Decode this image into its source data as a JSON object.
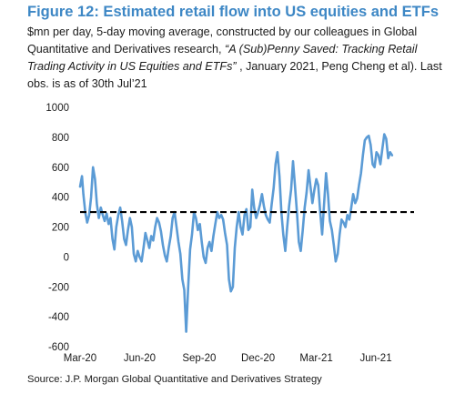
{
  "title": "Figure 12: Estimated retail flow into US equities and ETFs",
  "subtitle": {
    "part1": "$mn per day, 5-day moving average, constructed by our colleagues in Global Quantitative and Derivatives research, ",
    "italic": "“A (Sub)Penny Saved: Tracking Retail Trading Activity in US Equities and ETFs”",
    "part2": " , January 2021, Peng Cheng et al). Last obs. is as of 30th Jul’21"
  },
  "source": "Source: J.P. Morgan Global Quantitative and Derivatives Strategy",
  "colors": {
    "title": "#3d87c5",
    "series": "#5b9bd5",
    "reference": "#000000"
  },
  "chart_data": {
    "type": "line",
    "ylim": [
      -600,
      1000
    ],
    "y_ticks": [
      -600,
      -400,
      -200,
      0,
      200,
      400,
      600,
      800,
      1000
    ],
    "x_range": [
      "2020-03-01",
      "2021-07-30"
    ],
    "x_ticks": [
      {
        "date": "2020-03-01",
        "label": "Mar-20"
      },
      {
        "date": "2020-06-01",
        "label": "Jun-20"
      },
      {
        "date": "2020-09-01",
        "label": "Sep-20"
      },
      {
        "date": "2020-12-01",
        "label": "Dec-20"
      },
      {
        "date": "2021-03-01",
        "label": "Mar-21"
      },
      {
        "date": "2021-06-01",
        "label": "Jun-21"
      }
    ],
    "reference_line": {
      "value": 300,
      "style": "dashed"
    },
    "grid": false,
    "series": [
      {
        "points": [
          [
            "2020-03-01",
            470
          ],
          [
            "2020-03-04",
            540
          ],
          [
            "2020-03-06",
            420
          ],
          [
            "2020-03-09",
            300
          ],
          [
            "2020-03-12",
            230
          ],
          [
            "2020-03-15",
            280
          ],
          [
            "2020-03-18",
            400
          ],
          [
            "2020-03-21",
            600
          ],
          [
            "2020-03-24",
            520
          ],
          [
            "2020-03-27",
            350
          ],
          [
            "2020-03-30",
            260
          ],
          [
            "2020-04-02",
            330
          ],
          [
            "2020-04-05",
            280
          ],
          [
            "2020-04-08",
            240
          ],
          [
            "2020-04-11",
            290
          ],
          [
            "2020-04-14",
            220
          ],
          [
            "2020-04-17",
            260
          ],
          [
            "2020-04-20",
            120
          ],
          [
            "2020-04-23",
            50
          ],
          [
            "2020-04-26",
            200
          ],
          [
            "2020-04-29",
            280
          ],
          [
            "2020-05-02",
            330
          ],
          [
            "2020-05-05",
            240
          ],
          [
            "2020-05-08",
            120
          ],
          [
            "2020-05-11",
            80
          ],
          [
            "2020-05-14",
            180
          ],
          [
            "2020-05-17",
            260
          ],
          [
            "2020-05-20",
            200
          ],
          [
            "2020-05-23",
            20
          ],
          [
            "2020-05-26",
            -30
          ],
          [
            "2020-05-29",
            40
          ],
          [
            "2020-06-01",
            0
          ],
          [
            "2020-06-04",
            -30
          ],
          [
            "2020-06-07",
            60
          ],
          [
            "2020-06-10",
            160
          ],
          [
            "2020-06-13",
            110
          ],
          [
            "2020-06-16",
            60
          ],
          [
            "2020-06-19",
            140
          ],
          [
            "2020-06-22",
            110
          ],
          [
            "2020-06-25",
            200
          ],
          [
            "2020-06-28",
            260
          ],
          [
            "2020-07-01",
            230
          ],
          [
            "2020-07-04",
            170
          ],
          [
            "2020-07-07",
            80
          ],
          [
            "2020-07-10",
            10
          ],
          [
            "2020-07-13",
            -30
          ],
          [
            "2020-07-16",
            60
          ],
          [
            "2020-07-19",
            140
          ],
          [
            "2020-07-22",
            260
          ],
          [
            "2020-07-25",
            300
          ],
          [
            "2020-07-28",
            200
          ],
          [
            "2020-07-31",
            100
          ],
          [
            "2020-08-03",
            20
          ],
          [
            "2020-08-06",
            -150
          ],
          [
            "2020-08-09",
            -220
          ],
          [
            "2020-08-12",
            -500
          ],
          [
            "2020-08-15",
            -200
          ],
          [
            "2020-08-18",
            50
          ],
          [
            "2020-08-21",
            150
          ],
          [
            "2020-08-24",
            300
          ],
          [
            "2020-08-27",
            260
          ],
          [
            "2020-08-30",
            180
          ],
          [
            "2020-09-02",
            220
          ],
          [
            "2020-09-05",
            100
          ],
          [
            "2020-09-08",
            0
          ],
          [
            "2020-09-11",
            -40
          ],
          [
            "2020-09-14",
            60
          ],
          [
            "2020-09-17",
            100
          ],
          [
            "2020-09-20",
            40
          ],
          [
            "2020-09-23",
            140
          ],
          [
            "2020-09-26",
            220
          ],
          [
            "2020-09-29",
            300
          ],
          [
            "2020-10-02",
            260
          ],
          [
            "2020-10-05",
            280
          ],
          [
            "2020-10-08",
            250
          ],
          [
            "2020-10-11",
            160
          ],
          [
            "2020-10-14",
            80
          ],
          [
            "2020-10-17",
            -150
          ],
          [
            "2020-10-20",
            -230
          ],
          [
            "2020-10-23",
            -200
          ],
          [
            "2020-10-26",
            60
          ],
          [
            "2020-10-29",
            200
          ],
          [
            "2020-11-01",
            300
          ],
          [
            "2020-11-04",
            200
          ],
          [
            "2020-11-07",
            150
          ],
          [
            "2020-11-10",
            280
          ],
          [
            "2020-11-13",
            320
          ],
          [
            "2020-11-16",
            180
          ],
          [
            "2020-11-19",
            200
          ],
          [
            "2020-11-22",
            450
          ],
          [
            "2020-11-25",
            330
          ],
          [
            "2020-11-28",
            260
          ],
          [
            "2020-12-01",
            300
          ],
          [
            "2020-12-04",
            350
          ],
          [
            "2020-12-07",
            420
          ],
          [
            "2020-12-10",
            340
          ],
          [
            "2020-12-13",
            280
          ],
          [
            "2020-12-16",
            250
          ],
          [
            "2020-12-19",
            230
          ],
          [
            "2020-12-22",
            350
          ],
          [
            "2020-12-25",
            460
          ],
          [
            "2020-12-28",
            620
          ],
          [
            "2020-12-31",
            700
          ],
          [
            "2021-01-03",
            540
          ],
          [
            "2021-01-06",
            300
          ],
          [
            "2021-01-09",
            150
          ],
          [
            "2021-01-12",
            40
          ],
          [
            "2021-01-15",
            200
          ],
          [
            "2021-01-18",
            340
          ],
          [
            "2021-01-21",
            450
          ],
          [
            "2021-01-24",
            640
          ],
          [
            "2021-01-27",
            480
          ],
          [
            "2021-01-30",
            300
          ],
          [
            "2021-02-02",
            100
          ],
          [
            "2021-02-05",
            40
          ],
          [
            "2021-02-08",
            180
          ],
          [
            "2021-02-11",
            330
          ],
          [
            "2021-02-14",
            430
          ],
          [
            "2021-02-17",
            580
          ],
          [
            "2021-02-20",
            470
          ],
          [
            "2021-02-23",
            360
          ],
          [
            "2021-02-26",
            450
          ],
          [
            "2021-03-01",
            520
          ],
          [
            "2021-03-04",
            480
          ],
          [
            "2021-03-07",
            300
          ],
          [
            "2021-03-10",
            150
          ],
          [
            "2021-03-13",
            350
          ],
          [
            "2021-03-16",
            560
          ],
          [
            "2021-03-19",
            420
          ],
          [
            "2021-03-22",
            240
          ],
          [
            "2021-03-25",
            180
          ],
          [
            "2021-03-28",
            80
          ],
          [
            "2021-03-31",
            -30
          ],
          [
            "2021-04-03",
            20
          ],
          [
            "2021-04-06",
            150
          ],
          [
            "2021-04-09",
            250
          ],
          [
            "2021-04-12",
            230
          ],
          [
            "2021-04-15",
            200
          ],
          [
            "2021-04-18",
            280
          ],
          [
            "2021-04-21",
            250
          ],
          [
            "2021-04-24",
            330
          ],
          [
            "2021-04-27",
            420
          ],
          [
            "2021-04-30",
            360
          ],
          [
            "2021-05-03",
            390
          ],
          [
            "2021-05-06",
            480
          ],
          [
            "2021-05-09",
            560
          ],
          [
            "2021-05-12",
            680
          ],
          [
            "2021-05-15",
            780
          ],
          [
            "2021-05-18",
            800
          ],
          [
            "2021-05-21",
            810
          ],
          [
            "2021-05-24",
            750
          ],
          [
            "2021-05-27",
            620
          ],
          [
            "2021-05-30",
            600
          ],
          [
            "2021-06-02",
            700
          ],
          [
            "2021-06-05",
            680
          ],
          [
            "2021-06-08",
            620
          ],
          [
            "2021-06-11",
            720
          ],
          [
            "2021-06-14",
            820
          ],
          [
            "2021-06-17",
            790
          ],
          [
            "2021-06-20",
            660
          ],
          [
            "2021-06-23",
            700
          ],
          [
            "2021-06-26",
            680
          ]
        ]
      }
    ]
  }
}
